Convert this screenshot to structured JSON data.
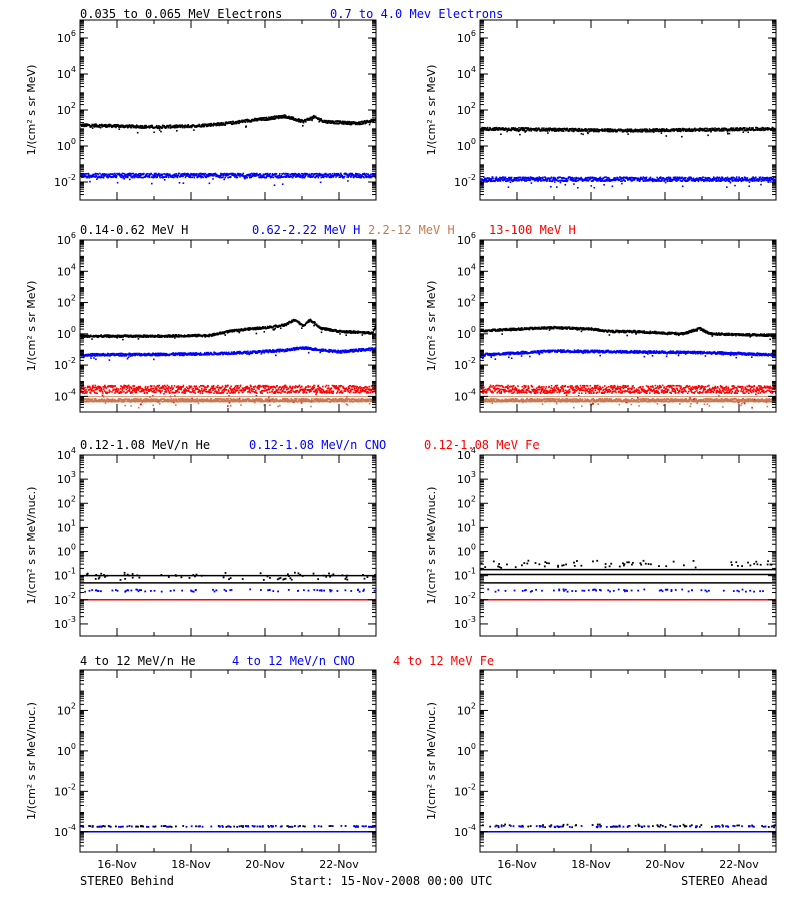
{
  "footer": {
    "left": "STEREO Behind",
    "center": "Start: 15-Nov-2008 00:00 UTC",
    "right": "STEREO Ahead"
  },
  "x_ticks": [
    "16-Nov",
    "18-Nov",
    "20-Nov",
    "22-Nov"
  ],
  "colors": {
    "black": "#000000",
    "blue": "#0000ff",
    "tan": "#c87850",
    "red": "#ff0000"
  },
  "chart_data": [
    {
      "type": "scatter",
      "row": "electrons",
      "legend": [
        {
          "name": "0.035 to 0.065 MeV Electrons",
          "color": "#000000"
        },
        {
          "name": "0.7 to 4.0 Mev Electrons",
          "color": "#0000ff"
        }
      ],
      "ylabel": "1/(cm² s sr MeV)",
      "ylim_log10": [
        -3,
        7
      ],
      "yticks_exp": [
        -2,
        0,
        2,
        4,
        6
      ],
      "x_days": [
        0,
        8
      ],
      "panels": [
        {
          "name": "STEREO Behind",
          "series": [
            {
              "color": "#000000",
              "points": [
                [
                  0,
                  1.2
                ],
                [
                  1,
                  1.15
                ],
                [
                  2,
                  1.1
                ],
                [
                  3,
                  1.15
                ],
                [
                  4,
                  1.3
                ],
                [
                  4.5,
                  1.45
                ],
                [
                  5,
                  1.55
                ],
                [
                  5.5,
                  1.7
                ],
                [
                  6,
                  1.4
                ],
                [
                  6.3,
                  1.65
                ],
                [
                  6.6,
                  1.4
                ],
                [
                  7,
                  1.35
                ],
                [
                  7.5,
                  1.3
                ],
                [
                  8,
                  1.5
                ]
              ],
              "spread": 0.08
            },
            {
              "color": "#0000ff",
              "points": [
                [
                  0,
                  -1.6
                ],
                [
                  8,
                  -1.6
                ]
              ],
              "spread": 0.12
            }
          ]
        },
        {
          "name": "STEREO Ahead",
          "series": [
            {
              "color": "#000000",
              "points": [
                [
                  0,
                  1.0
                ],
                [
                  2,
                  0.95
                ],
                [
                  4,
                  0.9
                ],
                [
                  6,
                  0.95
                ],
                [
                  8,
                  1.0
                ]
              ],
              "spread": 0.08
            },
            {
              "color": "#0000ff",
              "points": [
                [
                  0,
                  -1.8
                ],
                [
                  8,
                  -1.8
                ]
              ],
              "spread": 0.12
            }
          ]
        }
      ]
    },
    {
      "type": "scatter",
      "row": "protons",
      "legend": [
        {
          "name": "0.14-0.62 MeV H",
          "color": "#000000"
        },
        {
          "name": "0.62-2.22 MeV H",
          "color": "#0000ff"
        },
        {
          "name": "2.2-12 MeV H",
          "color": "#c87850"
        },
        {
          "name": "13-100 MeV H",
          "color": "#ff0000"
        }
      ],
      "ylabel": "1/(cm² s sr MeV)",
      "ylim_log10": [
        -5,
        6
      ],
      "yticks_exp": [
        -4,
        -2,
        0,
        2,
        4,
        6
      ],
      "x_days": [
        0,
        8
      ],
      "panels": [
        {
          "name": "STEREO Behind",
          "series": [
            {
              "color": "#000000",
              "points": [
                [
                  0,
                  -0.1
                ],
                [
                  2,
                  -0.1
                ],
                [
                  3.5,
                  -0.05
                ],
                [
                  4,
                  0.2
                ],
                [
                  4.5,
                  0.35
                ],
                [
                  5,
                  0.45
                ],
                [
                  5.5,
                  0.6
                ],
                [
                  5.8,
                  0.95
                ],
                [
                  6,
                  0.55
                ],
                [
                  6.2,
                  0.95
                ],
                [
                  6.5,
                  0.4
                ],
                [
                  7,
                  0.2
                ],
                [
                  7.5,
                  0.15
                ],
                [
                  7.9,
                  0.1
                ],
                [
                  8,
                  0.8
                ]
              ],
              "spread": 0.07
            },
            {
              "color": "#0000ff",
              "points": [
                [
                  0,
                  -1.3
                ],
                [
                  3,
                  -1.25
                ],
                [
                  4.5,
                  -1.15
                ],
                [
                  5.5,
                  -1.0
                ],
                [
                  6,
                  -0.85
                ],
                [
                  7,
                  -1.1
                ],
                [
                  8,
                  -0.9
                ]
              ],
              "spread": 0.08
            },
            {
              "color": "#c87850",
              "points": [
                [
                  0,
                  -4.2
                ],
                [
                  8,
                  -4.2
                ]
              ],
              "spread": 0.1
            },
            {
              "color": "#ff0000",
              "points": [
                [
                  0,
                  -3.5
                ],
                [
                  8,
                  -3.5
                ]
              ],
              "spread": 0.25
            }
          ]
        },
        {
          "name": "STEREO Ahead",
          "series": [
            {
              "color": "#000000",
              "points": [
                [
                  0,
                  0.25
                ],
                [
                  1,
                  0.35
                ],
                [
                  2,
                  0.45
                ],
                [
                  3,
                  0.35
                ],
                [
                  3.5,
                  0.2
                ],
                [
                  4,
                  0.2
                ],
                [
                  5,
                  0.1
                ],
                [
                  5.5,
                  0.05
                ],
                [
                  5.9,
                  0.4
                ],
                [
                  6.2,
                  0.05
                ],
                [
                  7,
                  0
                ],
                [
                  8,
                  -0.05
                ]
              ],
              "spread": 0.07
            },
            {
              "color": "#0000ff",
              "points": [
                [
                  0,
                  -1.3
                ],
                [
                  2,
                  -1.05
                ],
                [
                  4,
                  -1.1
                ],
                [
                  6,
                  -1.15
                ],
                [
                  8,
                  -1.3
                ]
              ],
              "spread": 0.08
            },
            {
              "color": "#c87850",
              "points": [
                [
                  0,
                  -4.2
                ],
                [
                  8,
                  -4.2
                ]
              ],
              "spread": 0.1
            },
            {
              "color": "#ff0000",
              "points": [
                [
                  0,
                  -3.5
                ],
                [
                  8,
                  -3.5
                ]
              ],
              "spread": 0.25
            }
          ]
        }
      ]
    },
    {
      "type": "scatter",
      "row": "heavy-low",
      "legend": [
        {
          "name": "0.12-1.08 MeV/n He",
          "color": "#000000"
        },
        {
          "name": "0.12-1.08 MeV/n CNO",
          "color": "#0000ff"
        },
        {
          "name": "0.12-1.08 MeV Fe",
          "color": "#ff0000"
        }
      ],
      "ylabel": "1/(cm² s sr MeV/nuc.)",
      "ylim_log10": [
        -3.5,
        4
      ],
      "yticks_exp": [
        -3,
        -2,
        -1,
        0,
        1,
        2,
        3,
        4
      ],
      "x_days": [
        0,
        8
      ],
      "panels": [
        {
          "name": "STEREO Behind",
          "lines": [
            {
              "color": "#000000",
              "y": -1.3
            },
            {
              "color": "#000000",
              "y": -1.0
            },
            {
              "color": "#0000ff",
              "y": -2.0
            },
            {
              "color": "#ff0000",
              "y": -2.0
            }
          ],
          "sparse": [
            {
              "color": "#000000",
              "y": -1.05,
              "range": 0.3
            },
            {
              "color": "#0000ff",
              "y": -1.6,
              "range": 0.1
            }
          ]
        },
        {
          "name": "STEREO Ahead",
          "lines": [
            {
              "color": "#000000",
              "y": -1.3
            },
            {
              "color": "#000000",
              "y": -0.95
            },
            {
              "color": "#000000",
              "y": -0.75
            },
            {
              "color": "#0000ff",
              "y": -2.0
            },
            {
              "color": "#ff0000",
              "y": -2.0
            }
          ],
          "sparse": [
            {
              "color": "#000000",
              "y": -0.55,
              "range": 0.3
            },
            {
              "color": "#0000ff",
              "y": -1.6,
              "range": 0.1
            }
          ]
        }
      ]
    },
    {
      "type": "scatter",
      "row": "heavy-high",
      "legend": [
        {
          "name": "4 to 12 MeV/n He",
          "color": "#000000"
        },
        {
          "name": "4 to 12 MeV/n CNO",
          "color": "#0000ff"
        },
        {
          "name": "4 to 12 MeV Fe",
          "color": "#ff0000"
        }
      ],
      "ylabel": "1/(cm² s sr MeV/nuc.)",
      "ylim_log10": [
        -5,
        4
      ],
      "yticks_exp": [
        -4,
        -2,
        0,
        2
      ],
      "x_days": [
        0,
        8
      ],
      "panels": [
        {
          "name": "STEREO Behind",
          "lines": [
            {
              "color": "#0000ff",
              "y": -4.0
            }
          ],
          "sparse": [
            {
              "color": "#000000",
              "y": -3.7,
              "range": 0.05
            },
            {
              "color": "#0000ff",
              "y": -3.7,
              "range": 0.05
            }
          ]
        },
        {
          "name": "STEREO Ahead",
          "lines": [
            {
              "color": "#0000ff",
              "y": -4.0
            }
          ],
          "sparse": [
            {
              "color": "#000000",
              "y": -3.7,
              "range": 0.15
            },
            {
              "color": "#0000ff",
              "y": -3.7,
              "range": 0.05
            }
          ]
        }
      ]
    }
  ]
}
